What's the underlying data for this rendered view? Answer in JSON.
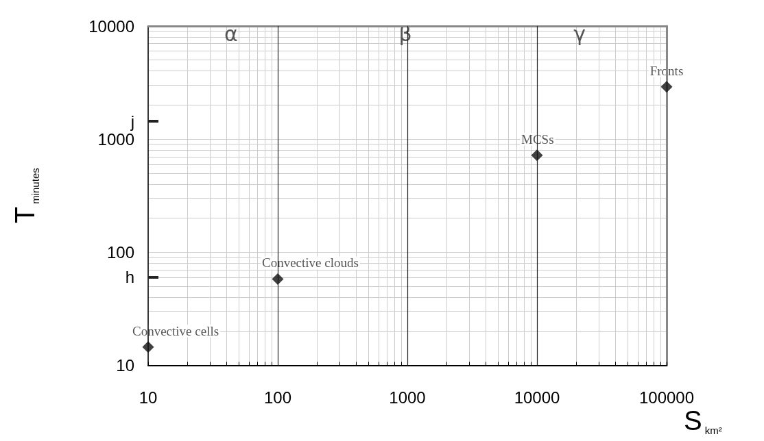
{
  "chart_data": {
    "type": "scatter",
    "xlabel": "S$_{km²}$",
    "ylabel": "T$_{minutes}$",
    "x": [
      10,
      100,
      10000,
      100000
    ],
    "series": [
      {
        "color": "#111111",
        "values": [
          14.5,
          58,
          720,
          2900
        ]
      }
    ],
    "xlim": [
      10,
      100000
    ],
    "xticks": [
      10,
      100,
      1000,
      10000,
      100000
    ],
    "ylim": [
      10,
      10000
    ],
    "yticks": [
      10,
      {
        "value": 60,
        "label": "h"
      },
      100,
      1000,
      {
        "value": 1440,
        "label": "j"
      },
      10000
    ],
    "log": "xy",
    "grid": true,
    "marker": "diamond",
    "ref_lines": [
      {
        "axis": "x",
        "value": 100,
        "color": "#222222"
      },
      {
        "axis": "x",
        "value": 1000,
        "color": "#222222"
      },
      {
        "axis": "x",
        "value": 10000,
        "color": "#222222"
      }
    ],
    "annotations": [
      {
        "text": "Convective cells",
        "x": 10,
        "y": 14.5
      },
      {
        "text": "Convective clouds",
        "x": 100,
        "y": 58
      },
      {
        "text": "MCSs",
        "x": 10000,
        "y": 720
      },
      {
        "text": "Fronts",
        "x": 100000,
        "y": 2900
      },
      "α",
      "β",
      "γ"
    ]
  }
}
